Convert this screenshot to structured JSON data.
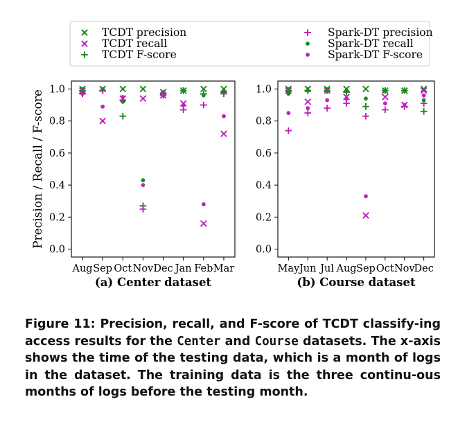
{
  "legend": {
    "entries": [
      {
        "label": "TCDT precision",
        "marker": "x",
        "color": "#1a8a1a"
      },
      {
        "label": "TCDT recall",
        "marker": "x",
        "color": "#c020c0"
      },
      {
        "label": "TCDT F-score",
        "marker": "+",
        "color": "#1a8a1a"
      },
      {
        "label": "Spark-DT precision",
        "marker": "+",
        "color": "#c020c0"
      },
      {
        "label": "Spark-DT recall",
        "marker": "dot",
        "color": "#1a8a1a"
      },
      {
        "label": "Spark-DT F-score",
        "marker": "dot",
        "color": "#c020c0"
      }
    ]
  },
  "chart_data": [
    {
      "type": "scatter",
      "title": "(a) Center dataset",
      "ylabel": "Precision / Recall / F-score",
      "xlabel": "",
      "ylim": [
        0.0,
        1.0
      ],
      "yticks": [
        "0.0",
        "0.2",
        "0.4",
        "0.6",
        "0.8",
        "1.0"
      ],
      "grid": false,
      "categories": [
        "Aug",
        "Sep",
        "Oct",
        "Nov",
        "Dec",
        "Jan",
        "Feb",
        "Mar"
      ],
      "series": [
        {
          "name": "TCDT precision",
          "values": [
            1.0,
            1.0,
            1.0,
            1.0,
            0.98,
            0.99,
            1.0,
            1.0
          ]
        },
        {
          "name": "TCDT recall",
          "values": [
            0.99,
            0.8,
            0.94,
            0.94,
            0.96,
            0.91,
            0.16,
            0.72
          ]
        },
        {
          "name": "TCDT F-score",
          "values": [
            0.99,
            0.99,
            0.83,
            0.27,
            0.97,
            0.99,
            0.97,
            0.98
          ]
        },
        {
          "name": "Spark-DT precision",
          "values": [
            0.97,
            0.99,
            0.93,
            0.25,
            0.96,
            0.87,
            0.9,
            0.97
          ]
        },
        {
          "name": "Spark-DT recall",
          "values": [
            0.98,
            1.0,
            0.92,
            0.43,
            0.98,
            0.99,
            0.96,
            0.98
          ]
        },
        {
          "name": "Spark-DT F-score",
          "values": [
            0.97,
            0.89,
            0.95,
            0.4,
            0.97,
            0.9,
            0.28,
            0.83
          ]
        }
      ]
    },
    {
      "type": "scatter",
      "title": "(b) Course dataset",
      "ylabel": "",
      "xlabel": "",
      "ylim": [
        0.0,
        1.0
      ],
      "yticks": [
        "0.0",
        "0.2",
        "0.4",
        "0.6",
        "0.8",
        "1.0"
      ],
      "grid": false,
      "categories": [
        "May",
        "Jun",
        "Jul",
        "Aug",
        "Sep",
        "Oct",
        "Nov",
        "Dec"
      ],
      "series": [
        {
          "name": "TCDT precision",
          "values": [
            1.0,
            1.0,
            1.0,
            1.0,
            1.0,
            0.99,
            0.99,
            1.0
          ]
        },
        {
          "name": "TCDT recall",
          "values": [
            0.99,
            0.92,
            0.99,
            0.95,
            0.21,
            0.95,
            0.9,
            0.99
          ]
        },
        {
          "name": "TCDT F-score",
          "values": [
            0.99,
            0.99,
            0.99,
            0.98,
            0.89,
            0.99,
            0.99,
            0.86
          ]
        },
        {
          "name": "Spark-DT precision",
          "values": [
            0.74,
            0.85,
            0.88,
            0.91,
            0.83,
            0.87,
            0.89,
            0.91
          ]
        },
        {
          "name": "Spark-DT recall",
          "values": [
            0.97,
            0.99,
            0.99,
            0.99,
            0.94,
            0.99,
            0.99,
            0.93
          ]
        },
        {
          "name": "Spark-DT F-score",
          "values": [
            0.85,
            0.88,
            0.93,
            0.94,
            0.33,
            0.91,
            0.9,
            0.96
          ]
        }
      ]
    }
  ],
  "caption": {
    "p1": "Figure 11: Precision, recall, and F-score of TCDT classify-ing access results for the ",
    "center": "Center",
    "p2": " and ",
    "course": "Course",
    "p3": " datasets. The x-axis shows the time of the testing data, which is a month of logs in the dataset. The training data is the three continu-ous months of logs before the testing month."
  }
}
